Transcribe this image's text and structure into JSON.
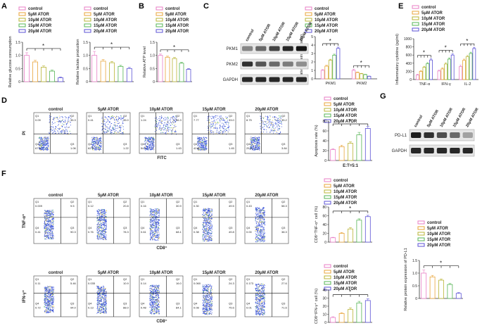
{
  "colors": {
    "control": "#e87ec6",
    "c5": "#e8a43a",
    "c10": "#b9b435",
    "c15": "#56b555",
    "c20": "#5b52d6",
    "dots": "#3b55d9",
    "bar_fill": "#ffffff",
    "axis": "#333333"
  },
  "legend": [
    "control",
    "5μM ATOR",
    "10μM ATOR",
    "15μM ATOR",
    "20μM ATOR"
  ],
  "star": "*",
  "panels": {
    "A": "A",
    "B": "B",
    "C": "C",
    "D": "D",
    "E": "E",
    "F": "F",
    "G": "G"
  },
  "blots": {
    "C": {
      "lanes": [
        "control",
        "5μM ATOR",
        "10μM ATOR",
        "15μM ATOR",
        "20μM ATOR"
      ],
      "rows": [
        "PKM1",
        "PKM2",
        "GAPDH"
      ]
    },
    "G": {
      "lanes": [
        "control",
        "5μM ATOR",
        "10μM ATOR",
        "15μM ATOR",
        "20μM ATOR"
      ],
      "rows": [
        "PD-L1",
        "GAPDH"
      ]
    }
  },
  "flow": {
    "D": {
      "titles": [
        "control",
        "5μM ATOR",
        "10μM ATOR",
        "15μM ATOR",
        "20μM ATOR"
      ],
      "ylabel": "PI",
      "xlabel": "FITC",
      "quad_labels": [
        "Q1",
        "Q2",
        "Q3",
        "Q4"
      ],
      "values": [
        [
          "0.09",
          "35.3",
          "1.06",
          "67.5"
        ],
        [
          "0.41",
          "35.0",
          "1.22",
          "62.9"
        ],
        [
          "1.24",
          "36.3",
          "1.43",
          "54.9"
        ],
        [
          "7.77",
          "33.0",
          "1.45",
          "42.8"
        ],
        [
          "8.75",
          "35.2",
          "3.84",
          "25.6"
        ]
      ]
    },
    "F1": {
      "titles": [
        "control",
        "5μM ATOR",
        "10μM ATOR",
        "15μM ATOR",
        "20μM ATOR"
      ],
      "ylabel": "TNF-α⁺",
      "xlabel": "CD8⁺",
      "quad_labels": [
        "Q1",
        "Q2",
        "Q3",
        "Q4"
      ],
      "values": [
        [
          "0.009",
          "9.5",
          "90.3",
          "0.41"
        ],
        [
          "0.12",
          "20.8",
          "78.3",
          "0.76"
        ],
        [
          "0.16",
          "30.9",
          "68.1",
          "0.61"
        ],
        [
          "0.30",
          "49.5",
          "49.8",
          "0.38"
        ],
        [
          "0.43",
          "58.3",
          "38.3",
          "0.00"
        ]
      ]
    },
    "F2": {
      "titles": [
        "control",
        "5μM ATOR",
        "10μM ATOR",
        "15μM ATOR",
        "20μM ATOR"
      ],
      "ylabel": "IFN-γ⁺",
      "xlabel": "CD8⁺",
      "quad_labels": [
        "Q1",
        "Q2",
        "Q3",
        "Q4"
      ],
      "values": [
        [
          "0.11",
          "5.46",
          "94.0",
          "0.72"
        ],
        [
          "0.035",
          "10.9",
          "88.0",
          "0.13"
        ],
        [
          "0.14",
          "16.0",
          "84.1",
          "0.48"
        ],
        [
          "0.060",
          "24.3",
          "75.6",
          "0.08"
        ],
        [
          "0.173",
          "27.6",
          "71.6",
          "0.01"
        ]
      ]
    }
  },
  "chart_data": [
    {
      "id": "A1",
      "type": "bar",
      "categories": [
        "control",
        "5μM ATOR",
        "10μM ATOR",
        "15μM ATOR",
        "20μM ATOR"
      ],
      "values": [
        1.0,
        0.75,
        0.55,
        0.4,
        0.15
      ],
      "errors": [
        0.1,
        0.06,
        0.05,
        0.04,
        0.03
      ],
      "ylabel": "Relative glucose consumption",
      "ylim": [
        0,
        1.5
      ],
      "ticks": [
        0,
        0.5,
        1.0,
        1.5
      ],
      "tick_labels": [
        "0",
        "0.5",
        "1.0",
        "1.5"
      ]
    },
    {
      "id": "A2",
      "type": "bar",
      "categories": [
        "control",
        "5μM ATOR",
        "10μM ATOR",
        "15μM ATOR",
        "20μM ATOR"
      ],
      "values": [
        1.0,
        0.78,
        0.72,
        0.58,
        0.5
      ],
      "errors": [
        0.15,
        0.06,
        0.05,
        0.04,
        0.04
      ],
      "ylabel": "Relative lactate production",
      "ylim": [
        0,
        1.5
      ],
      "ticks": [
        0,
        0.5,
        1.0,
        1.5
      ],
      "tick_labels": [
        "0",
        "0.5",
        "1.0",
        "1.5"
      ]
    },
    {
      "id": "B",
      "type": "bar",
      "categories": [
        "control",
        "5μM ATOR",
        "10μM ATOR",
        "15μM ATOR",
        "20μM ATOR"
      ],
      "values": [
        1.0,
        0.93,
        0.88,
        0.7,
        0.47
      ],
      "errors": [
        0.05,
        0.04,
        0.04,
        0.04,
        0.03
      ],
      "ylabel": "Relative ATP level",
      "ylim": [
        0,
        1.5
      ],
      "ticks": [
        0,
        0.5,
        1.0,
        1.5
      ],
      "tick_labels": [
        "0",
        "0.5",
        "1.0",
        "1.5"
      ]
    },
    {
      "id": "C",
      "type": "bar",
      "categories": [
        "PKM1",
        "PKM2"
      ],
      "series": [
        {
          "name": "control",
          "values": [
            1.0,
            1.0
          ],
          "errors": [
            0.1,
            0.15
          ]
        },
        {
          "name": "5μM ATOR",
          "values": [
            1.5,
            0.75
          ],
          "errors": [
            0.1,
            0.06
          ]
        },
        {
          "name": "10μM ATOR",
          "values": [
            2.2,
            0.6
          ],
          "errors": [
            0.12,
            0.05
          ]
        },
        {
          "name": "15μM ATOR",
          "values": [
            2.8,
            0.5
          ],
          "errors": [
            0.12,
            0.04
          ]
        },
        {
          "name": "20μM ATOR",
          "values": [
            3.6,
            0.3
          ],
          "errors": [
            0.15,
            0.03
          ]
        }
      ],
      "ylabel": "Relative protein expression",
      "ylim": [
        0,
        5
      ],
      "ticks": [
        0,
        1,
        2,
        3,
        4,
        5
      ],
      "tick_labels": [
        "0",
        "1",
        "2",
        "3",
        "4",
        "5"
      ]
    },
    {
      "id": "D",
      "type": "bar",
      "categories": [
        "control",
        "5μM ATOR",
        "10μM ATOR",
        "15μM ATOR",
        "20μM ATOR"
      ],
      "values": [
        22,
        28,
        35,
        52,
        65
      ],
      "errors": [
        2,
        3,
        3,
        5,
        4
      ],
      "ylabel": "Apoptosis rate (%)",
      "xlabel": "E:T=5:1",
      "ylim": [
        0,
        80
      ],
      "ticks": [
        0,
        20,
        40,
        60,
        80
      ],
      "tick_labels": [
        "0",
        "20",
        "40",
        "60",
        "80"
      ]
    },
    {
      "id": "E",
      "type": "bar",
      "categories": [
        "TNF-α",
        "IFN-γ",
        "IL-2"
      ],
      "series": [
        {
          "name": "control",
          "values": [
            110,
            210,
            320
          ],
          "errors": [
            20,
            20,
            30
          ]
        },
        {
          "name": "5μM ATOR",
          "values": [
            200,
            260,
            470
          ],
          "errors": [
            20,
            25,
            30
          ]
        },
        {
          "name": "10μM ATOR",
          "values": [
            300,
            380,
            560
          ],
          "errors": [
            25,
            30,
            30
          ]
        },
        {
          "name": "15μM ATOR",
          "values": [
            390,
            500,
            640
          ],
          "errors": [
            25,
            30,
            30
          ]
        },
        {
          "name": "20μM ATOR",
          "values": [
            480,
            600,
            760
          ],
          "errors": [
            25,
            30,
            30
          ]
        }
      ],
      "ylabel": "Inflammatory cytokine (pg/ml)",
      "ylim": [
        0,
        1000
      ],
      "ticks": [
        0,
        200,
        400,
        600,
        800,
        1000
      ],
      "tick_labels": [
        "0",
        "200",
        "400",
        "600",
        "800",
        "1000"
      ]
    },
    {
      "id": "F1",
      "type": "bar",
      "categories": [
        "control",
        "5μM ATOR",
        "10μM ATOR",
        "15μM ATOR",
        "20μM ATOR"
      ],
      "values": [
        10,
        20,
        30,
        50,
        58
      ],
      "errors": [
        1,
        2,
        3,
        3,
        3
      ],
      "ylabel": "CD8⁺TNF-α⁺ cell (%)",
      "ylim": [
        0,
        80
      ],
      "ticks": [
        0,
        20,
        40,
        60,
        80
      ],
      "tick_labels": [
        "0",
        "20",
        "40",
        "60",
        "80"
      ]
    },
    {
      "id": "F2",
      "type": "bar",
      "categories": [
        "control",
        "5μM ATOR",
        "10μM ATOR",
        "15μM ATOR",
        "20μM ATOR"
      ],
      "values": [
        6,
        11,
        16,
        24,
        27
      ],
      "errors": [
        1,
        1,
        2,
        2,
        2
      ],
      "ylabel": "CD8⁺IFN-γ⁺ cell (%)",
      "ylim": [
        0,
        40
      ],
      "ticks": [
        0,
        10,
        20,
        30,
        40
      ],
      "tick_labels": [
        "0",
        "10",
        "20",
        "30",
        "40"
      ]
    },
    {
      "id": "G",
      "type": "bar",
      "categories": [
        "control",
        "5μM ATOR",
        "10μM ATOR",
        "15μM ATOR",
        "20μM ATOR"
      ],
      "values": [
        1.0,
        0.85,
        0.72,
        0.55,
        0.2
      ],
      "errors": [
        0.12,
        0.06,
        0.05,
        0.04,
        0.03
      ],
      "ylabel": "Relative protein expression of PD-L1",
      "ylim": [
        0,
        1.5
      ],
      "ticks": [
        0,
        0.5,
        1.0,
        1.5
      ],
      "tick_labels": [
        "0",
        "0.5",
        "1.0",
        "1.5"
      ]
    }
  ]
}
